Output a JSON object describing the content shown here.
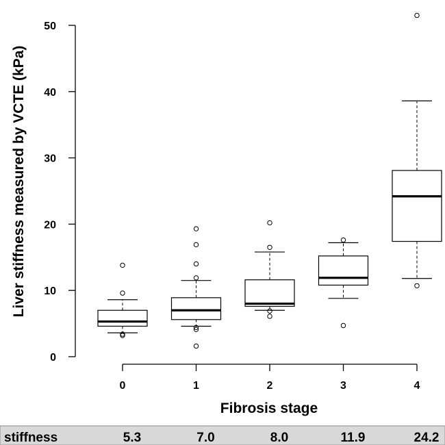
{
  "chart_data": {
    "type": "box",
    "xlabel": "Fibrosis stage",
    "ylabel": "Liver stiffness measured by VCTE (kPa)",
    "categories": [
      "0",
      "1",
      "2",
      "3",
      "4"
    ],
    "ylim": [
      0,
      53
    ],
    "yticks": [
      0,
      10,
      20,
      30,
      40,
      50
    ],
    "grid": false,
    "boxes": [
      {
        "category": "0",
        "whisker_low": 3.6,
        "q1": 4.6,
        "median": 5.3,
        "q3": 7.0,
        "whisker_high": 8.6,
        "outliers": [
          13.8,
          9.6,
          3.4,
          3.2
        ]
      },
      {
        "category": "1",
        "whisker_low": 4.6,
        "q1": 5.6,
        "median": 7.0,
        "q3": 8.9,
        "whisker_high": 11.5,
        "outliers": [
          19.3,
          16.9,
          14.0,
          11.9,
          4.4,
          4.1,
          1.6
        ]
      },
      {
        "category": "2",
        "whisker_low": 7.0,
        "q1": 7.6,
        "median": 8.0,
        "q3": 11.6,
        "whisker_high": 15.8,
        "outliers": [
          20.2,
          16.5,
          6.9,
          6.1
        ]
      },
      {
        "category": "3",
        "whisker_low": 8.8,
        "q1": 10.8,
        "median": 11.9,
        "q3": 15.2,
        "whisker_high": 17.2,
        "outliers": [
          17.6,
          4.7
        ]
      },
      {
        "category": "4",
        "whisker_low": 11.8,
        "q1": 17.4,
        "median": 24.2,
        "q3": 28.1,
        "whisker_high": 38.6,
        "outliers": [
          51.5,
          10.7
        ]
      }
    ]
  },
  "footer": {
    "label": "stiffness",
    "values": [
      "5.3",
      "7.0",
      "8.0",
      "11.9",
      "24.2"
    ]
  },
  "colors": {
    "footer_background": "#d9d9d9",
    "ink": "#000000"
  }
}
